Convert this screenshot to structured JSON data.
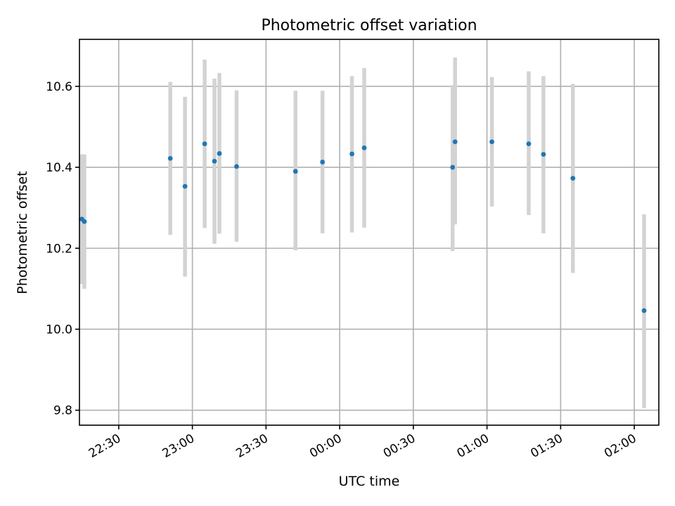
{
  "chart_data": {
    "type": "scatter",
    "title": "Photometric offset variation",
    "xlabel": "UTC time",
    "ylabel": "Photometric offset",
    "xlim": [
      "22:14",
      "02:10"
    ],
    "ylim": [
      9.763,
      10.716
    ],
    "grid": true,
    "x_ticks": [
      "22:30",
      "23:00",
      "23:30",
      "00:00",
      "00:30",
      "01:00",
      "01:30",
      "02:00"
    ],
    "y_ticks": [
      "9.8",
      "10.0",
      "10.2",
      "10.4",
      "10.6"
    ],
    "marker_color": "#1f77b4",
    "errorbar_color": "#d3d3d3",
    "points": [
      {
        "time": "22:15",
        "y": 10.272,
        "ylo": 10.112,
        "yhi": 10.432
      },
      {
        "time": "22:16",
        "y": 10.266,
        "ylo": 10.1,
        "yhi": 10.432
      },
      {
        "time": "22:51",
        "y": 10.422,
        "ylo": 10.233,
        "yhi": 10.611
      },
      {
        "time": "22:57",
        "y": 10.353,
        "ylo": 10.13,
        "yhi": 10.574
      },
      {
        "time": "23:05",
        "y": 10.458,
        "ylo": 10.25,
        "yhi": 10.666
      },
      {
        "time": "23:09",
        "y": 10.415,
        "ylo": 10.211,
        "yhi": 10.619
      },
      {
        "time": "23:11",
        "y": 10.434,
        "ylo": 10.236,
        "yhi": 10.633
      },
      {
        "time": "23:18",
        "y": 10.402,
        "ylo": 10.216,
        "yhi": 10.59
      },
      {
        "time": "23:42",
        "y": 10.39,
        "ylo": 10.195,
        "yhi": 10.589
      },
      {
        "time": "23:53",
        "y": 10.413,
        "ylo": 10.237,
        "yhi": 10.589
      },
      {
        "time": "00:05",
        "y": 10.433,
        "ylo": 10.239,
        "yhi": 10.625
      },
      {
        "time": "00:10",
        "y": 10.448,
        "ylo": 10.251,
        "yhi": 10.645
      },
      {
        "time": "00:46",
        "y": 10.4,
        "ylo": 10.193,
        "yhi": 10.603
      },
      {
        "time": "00:47",
        "y": 10.463,
        "ylo": 10.259,
        "yhi": 10.671
      },
      {
        "time": "01:02",
        "y": 10.463,
        "ylo": 10.303,
        "yhi": 10.623
      },
      {
        "time": "01:17",
        "y": 10.458,
        "ylo": 10.282,
        "yhi": 10.637
      },
      {
        "time": "01:23",
        "y": 10.432,
        "ylo": 10.237,
        "yhi": 10.625
      },
      {
        "time": "01:35",
        "y": 10.373,
        "ylo": 10.139,
        "yhi": 10.606
      },
      {
        "time": "02:04",
        "y": 10.046,
        "ylo": 9.805,
        "yhi": 10.284
      }
    ]
  }
}
